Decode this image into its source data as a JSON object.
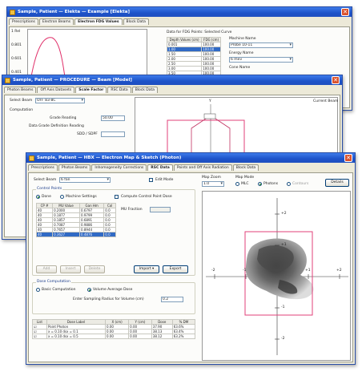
{
  "win1": {
    "title": "Sample, Patient — Elekta — Example [Elekta]",
    "tabs": [
      "Prescriptions",
      "Electron Beams",
      "Electron FDG Values",
      "Block Data"
    ],
    "active_tab": 2,
    "y_ticks": [
      "1 Rel",
      "0.801",
      "0.601",
      "0.401",
      "0.201"
    ],
    "table_title": "Data for FDG Points: Selected Curve",
    "table_headers": [
      "Depth Values (cm)",
      "FDG (cm)"
    ],
    "table_rows": [
      [
        "0.001",
        "100.00"
      ],
      [
        "1.00",
        "100.00"
      ],
      [
        "1.50",
        "100.00"
      ],
      [
        "2.00",
        "100.00"
      ],
      [
        "2.50",
        "100.00"
      ],
      [
        "3.00",
        "100.00"
      ],
      [
        "3.50",
        "100.00"
      ]
    ],
    "machine_label": "Machine Name",
    "machine_value": "Probe 10-11",
    "energy_label": "Energy Name",
    "energy_value": "6 mev",
    "cone_label": "Cone Name"
  },
  "win2": {
    "title": "Sample, Patient — PROCEDURE — Beam [Model]",
    "tabs": [
      "Photon Beams",
      "Off Axis Datasets",
      "Scale Factor",
      "RSC Data",
      "Block Data"
    ],
    "active_tab": 2,
    "select_beam_label": "Select Beam",
    "select_beam_value": "OFF 83-8C",
    "computation_label": "Computation",
    "grade_label": "Grade Reading",
    "grade_value": "50.00",
    "defined_label": "Data Grade Definition Reading",
    "sdd_label": "SDD / SDPF",
    "current_beam_label": "Current Beam",
    "axis_label": "Y"
  },
  "win3": {
    "title": "Sample, Patient — HBX — Electron Map & Sketch (Photon)",
    "tabs": [
      "Prescriptions",
      "Photon Beams",
      "Inhomogeneity Corrections",
      "RSC Data",
      "Points and Off Axis Radiation",
      "Block Data"
    ],
    "active_tab": 3,
    "select_beam_label": "Select Beam",
    "select_beam_value": "6 fan",
    "edit_mode_label": "Edit Mode",
    "control_points_label": "Control Points",
    "radio_done": "Done",
    "radio_machine": "Machine Settings",
    "compute_label": "Compute Control Point Dose",
    "mu_fraction_label": "MU Fraction",
    "cp_headers": [
      "CP #",
      "MU Value",
      "Gan Hm",
      "Col"
    ],
    "cp_rows": [
      [
        "40",
        "0.2000",
        "0.6797",
        "0.0"
      ],
      [
        "40",
        "0.1877",
        "0.9799",
        "0.0"
      ],
      [
        "40",
        "0.1857",
        "0.6891",
        "0.0"
      ],
      [
        "40",
        "0.7087",
        "0.9886",
        "0.0"
      ],
      [
        "40",
        "0.7657",
        "0.8944",
        "0.0"
      ],
      [
        "40",
        "0.3627",
        "0.4876",
        "0.0"
      ]
    ],
    "cp_buttons": [
      "Add",
      "Insert",
      "Delete",
      "Import ▾",
      "Export"
    ],
    "dose_computation_label": "Dose Computation",
    "radio_basic": "Basic Computation",
    "radio_volume": "Volume Average Dose",
    "enter_sampling_label": "Enter Sampling Radius for Volume (cm)",
    "enter_sampling_value": "0.2",
    "bottom_headers": [
      "List",
      "Dose Label",
      "X (cm)",
      "Y (cm)",
      "Dose",
      "% DM"
    ],
    "bottom_rows": [
      [
        "☑",
        "Point Photon",
        "0.00",
        "0.00",
        "37.90",
        "63.6%"
      ],
      [
        "☑",
        "x = 0.10  dsx = 0.1",
        "0.00",
        "0.00",
        "38.13",
        "63.4%"
      ],
      [
        "☑",
        "x = 0.10  dsx = 0.5",
        "0.00",
        "0.00",
        "38.12",
        "63.2%"
      ]
    ],
    "map_zoom_label": "Map Zoom",
    "map_zoom_value": "1.0",
    "map_view_label": "Map Mode",
    "radio_mlc": "MLC",
    "radio_photons": "Photons",
    "radio_contours": "Contours",
    "details_label": "Details",
    "axis_labels": {
      "y_pos2": "+2",
      "y_pos1": "+1",
      "y_neg1": "-1",
      "y_neg2": "-2",
      "x_neg2": "-2",
      "x_neg1": "-1",
      "x_pos1": "+1",
      "x_pos2": "+2"
    }
  }
}
